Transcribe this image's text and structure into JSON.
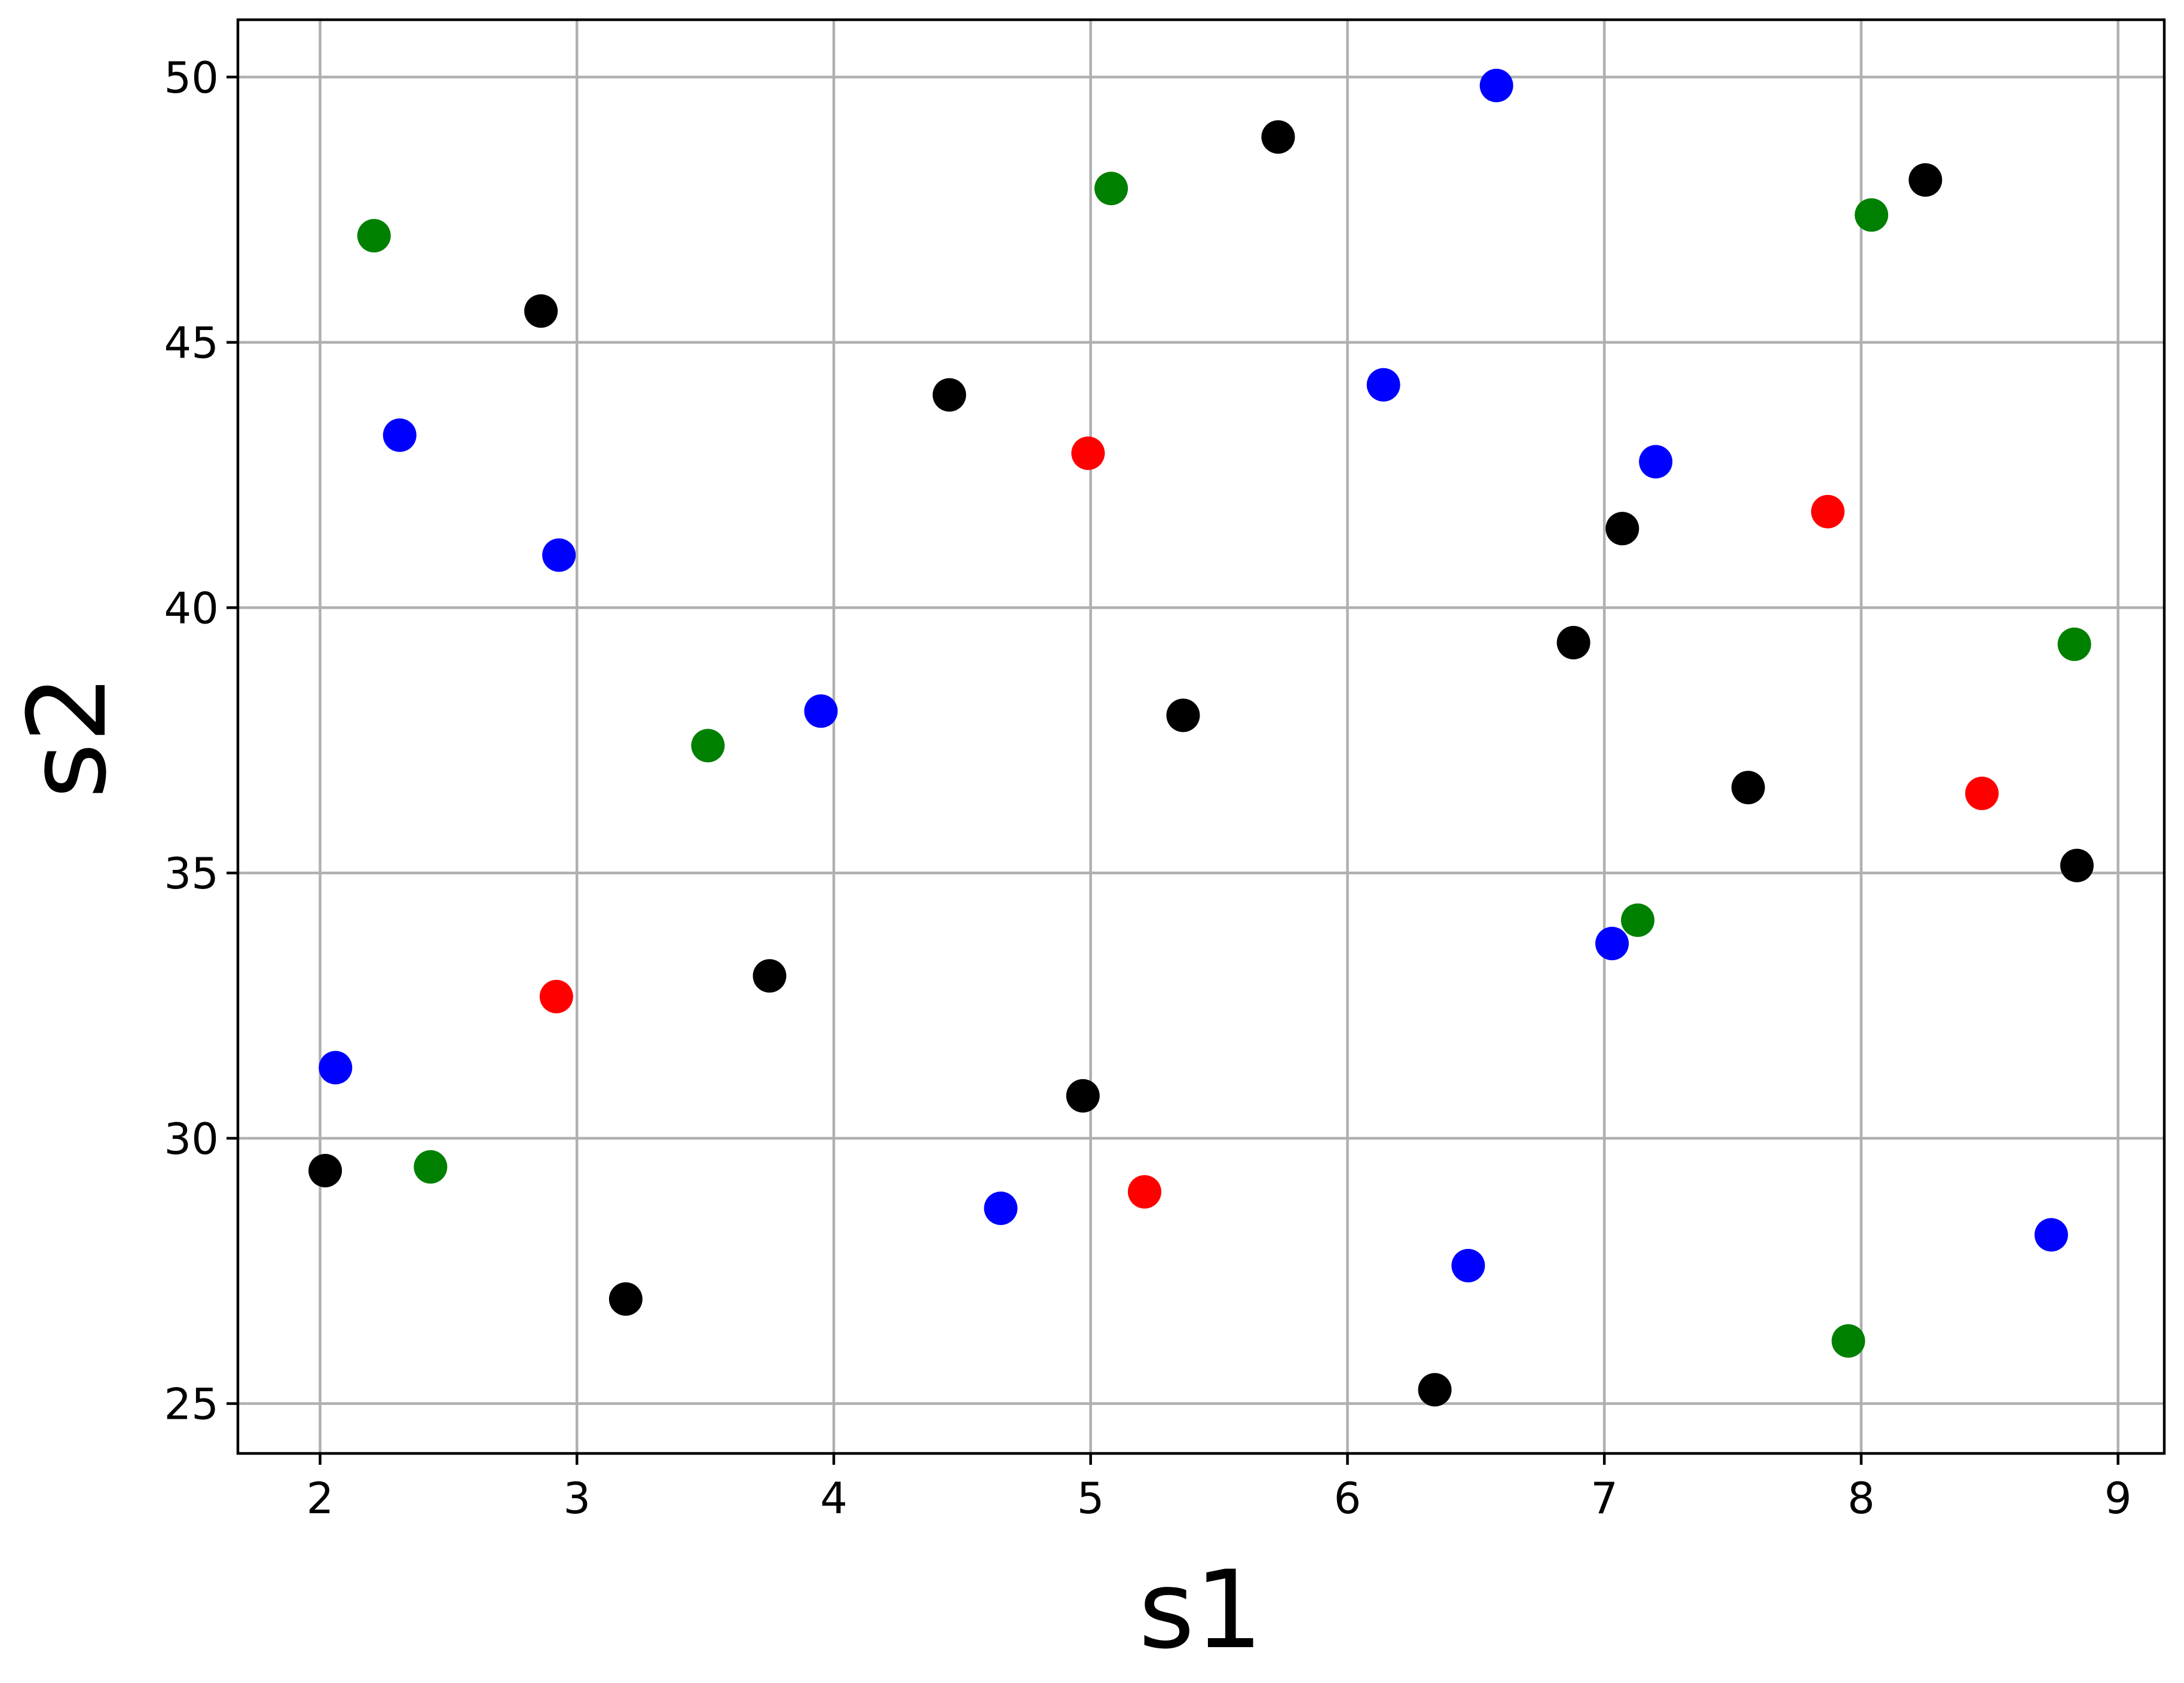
{
  "chart_data": {
    "type": "scatter",
    "x_label": "s1",
    "y_label": "s2",
    "xlim": [
      1.68,
      9.18
    ],
    "ylim": [
      24.06,
      51.08
    ],
    "xticks": [
      2,
      3,
      4,
      5,
      6,
      7,
      8,
      9
    ],
    "yticks": [
      25,
      30,
      35,
      40,
      45,
      50
    ],
    "grid": true,
    "series": [
      {
        "color": "#000000",
        "x": [
          2.02,
          2.86,
          3.19,
          3.75,
          4.45,
          4.97,
          5.36,
          5.73,
          6.34,
          6.88,
          7.07,
          7.56,
          8.25,
          8.84
        ],
        "values": [
          29.39,
          45.59,
          26.97,
          33.06,
          44.01,
          30.8,
          37.97,
          48.87,
          25.26,
          39.34,
          41.49,
          36.61,
          48.06,
          35.14
        ]
      },
      {
        "color": "#0000ff",
        "x": [
          2.06,
          2.31,
          2.93,
          3.95,
          4.65,
          6.14,
          6.58,
          6.47,
          7.03,
          7.2,
          8.74
        ],
        "values": [
          31.33,
          43.25,
          40.99,
          38.05,
          28.68,
          44.2,
          49.84,
          27.6,
          33.67,
          42.75,
          28.18
        ]
      },
      {
        "color": "#008000",
        "x": [
          2.21,
          2.43,
          3.51,
          5.08,
          7.13,
          7.95,
          8.04,
          8.83
        ],
        "values": [
          47.01,
          29.46,
          37.4,
          47.9,
          34.11,
          26.18,
          47.4,
          39.31
        ]
      },
      {
        "color": "#ff0000",
        "x": [
          2.92,
          4.99,
          5.21,
          7.87,
          8.47
        ],
        "values": [
          32.67,
          42.91,
          28.99,
          41.81,
          36.5
        ]
      }
    ]
  }
}
